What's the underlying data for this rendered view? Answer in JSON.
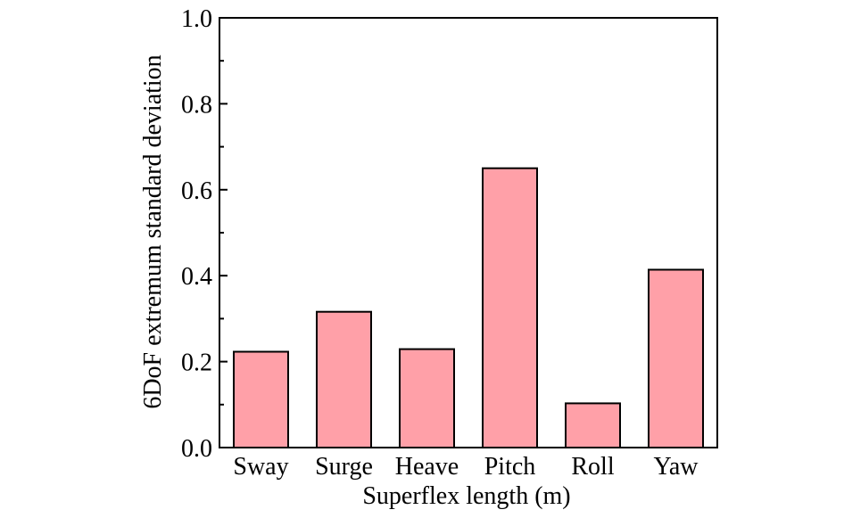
{
  "chart_data": {
    "type": "bar",
    "title": "",
    "xlabel": "Superflex  length (m)",
    "ylabel": "6DoF extremum standard deviation",
    "categories": [
      "Sway",
      "Surge",
      "Heave",
      "Pitch",
      "Roll",
      "Yaw"
    ],
    "values": [
      0.223,
      0.316,
      0.229,
      0.65,
      0.103,
      0.414
    ],
    "ylim": [
      0.0,
      1.0
    ],
    "yticks": [
      "0.0",
      "0.2",
      "0.4",
      "0.6",
      "0.8",
      "1.0"
    ],
    "grid": false,
    "legend": "none",
    "bar_color": "#FFA0A8",
    "bar_edge_color": "#000000"
  }
}
